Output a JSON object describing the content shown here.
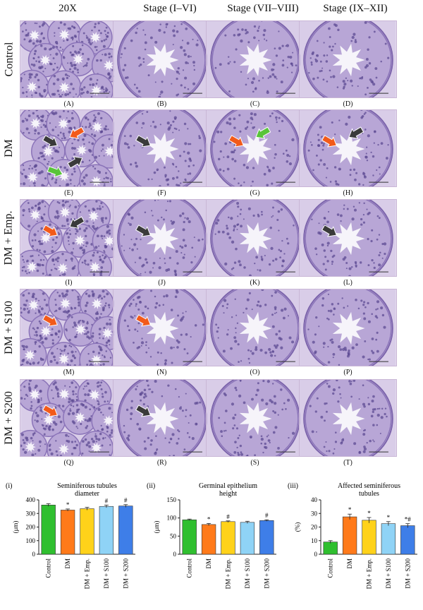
{
  "column_headers": [
    "20X",
    "Stage (I–VI)",
    "Stage (VII–VIII)",
    "Stage (IX–XII)"
  ],
  "row_headers": [
    "Control",
    "DM",
    "DM + Emp.",
    "DM + S100",
    "DM + S200"
  ],
  "panel_labels": [
    [
      "(A)",
      "(B)",
      "(C)",
      "(D)"
    ],
    [
      "(E)",
      "(F)",
      "(G)",
      "(H)"
    ],
    [
      "(I)",
      "(J)",
      "(K)",
      "(L)"
    ],
    [
      "(M)",
      "(N)",
      "(O)",
      "(P)"
    ],
    [
      "(Q)",
      "(R)",
      "(S)",
      "(T)"
    ]
  ],
  "colors": {
    "tissue_bg": "#d9cde8",
    "tubule_fill": "#b8a6d6",
    "tubule_edge": "#8a73b8",
    "lumen": "#f6f4fa",
    "arrow_black": "#3a3a3a",
    "arrow_orange": "#f25a1a",
    "arrow_green": "#59c43a"
  },
  "arrows": [
    [
      [],
      [],
      [],
      []
    ],
    [
      [
        {
          "color": "black"
        },
        {
          "color": "orange"
        },
        {
          "color": "black"
        },
        {
          "color": "green"
        }
      ],
      [
        {
          "color": "black"
        }
      ],
      [
        {
          "color": "orange"
        },
        {
          "color": "green"
        }
      ],
      [
        {
          "color": "orange"
        },
        {
          "color": "black"
        }
      ]
    ],
    [
      [
        {
          "color": "orange"
        },
        {
          "color": "black"
        }
      ],
      [
        {
          "color": "black"
        }
      ],
      [],
      [
        {
          "color": "black"
        }
      ]
    ],
    [
      [
        {
          "color": "orange"
        }
      ],
      [
        {
          "color": "orange"
        }
      ],
      [],
      []
    ],
    [
      [
        {
          "color": "orange"
        }
      ],
      [
        {
          "color": "black"
        }
      ],
      [],
      []
    ]
  ],
  "chart_data": [
    {
      "type": "bar",
      "panel": "(i)",
      "title": "Seminiferous tubules diameter",
      "ylabel": "(μm)",
      "ylim": [
        0,
        400
      ],
      "yticks": [
        0,
        100,
        200,
        300,
        400
      ],
      "categories": [
        "Control",
        "DM",
        "DM + Emp.",
        "DM + S100",
        "DM + S200"
      ],
      "values": [
        362,
        325,
        335,
        352,
        355
      ],
      "errors": [
        10,
        8,
        10,
        10,
        10
      ],
      "annotations": [
        "",
        "*",
        "",
        "#",
        "#"
      ],
      "colors": [
        "#2fbf2f",
        "#ff7a1a",
        "#ffd21a",
        "#8fd3f6",
        "#3e7ee8"
      ]
    },
    {
      "type": "bar",
      "panel": "(ii)",
      "title": "Germinal epithelium height",
      "ylabel": "(μm)",
      "ylim": [
        0,
        150
      ],
      "yticks": [
        0,
        50,
        100,
        150
      ],
      "categories": [
        "Control",
        "DM",
        "DM + Emp.",
        "DM + S100",
        "DM + S200"
      ],
      "values": [
        95,
        82,
        90,
        88,
        93
      ],
      "errors": [
        2,
        3,
        2,
        3,
        2
      ],
      "annotations": [
        "",
        "*",
        "#",
        "",
        "#"
      ],
      "colors": [
        "#2fbf2f",
        "#ff7a1a",
        "#ffd21a",
        "#8fd3f6",
        "#3e7ee8"
      ]
    },
    {
      "type": "bar",
      "panel": "(iii)",
      "title": "Affected seminiferous tubules",
      "ylabel": "(%)",
      "ylim": [
        0,
        40
      ],
      "yticks": [
        0,
        10,
        20,
        30,
        40
      ],
      "categories": [
        "Control",
        "DM",
        "DM + Emp.",
        "DM + S100",
        "DM + S200"
      ],
      "values": [
        9,
        27.5,
        25,
        22.5,
        21
      ],
      "errors": [
        1,
        2,
        2,
        1.5,
        1.5
      ],
      "annotations": [
        "",
        "*",
        "*",
        "*",
        "*#"
      ],
      "colors": [
        "#2fbf2f",
        "#ff7a1a",
        "#ffd21a",
        "#8fd3f6",
        "#3e7ee8"
      ]
    }
  ]
}
